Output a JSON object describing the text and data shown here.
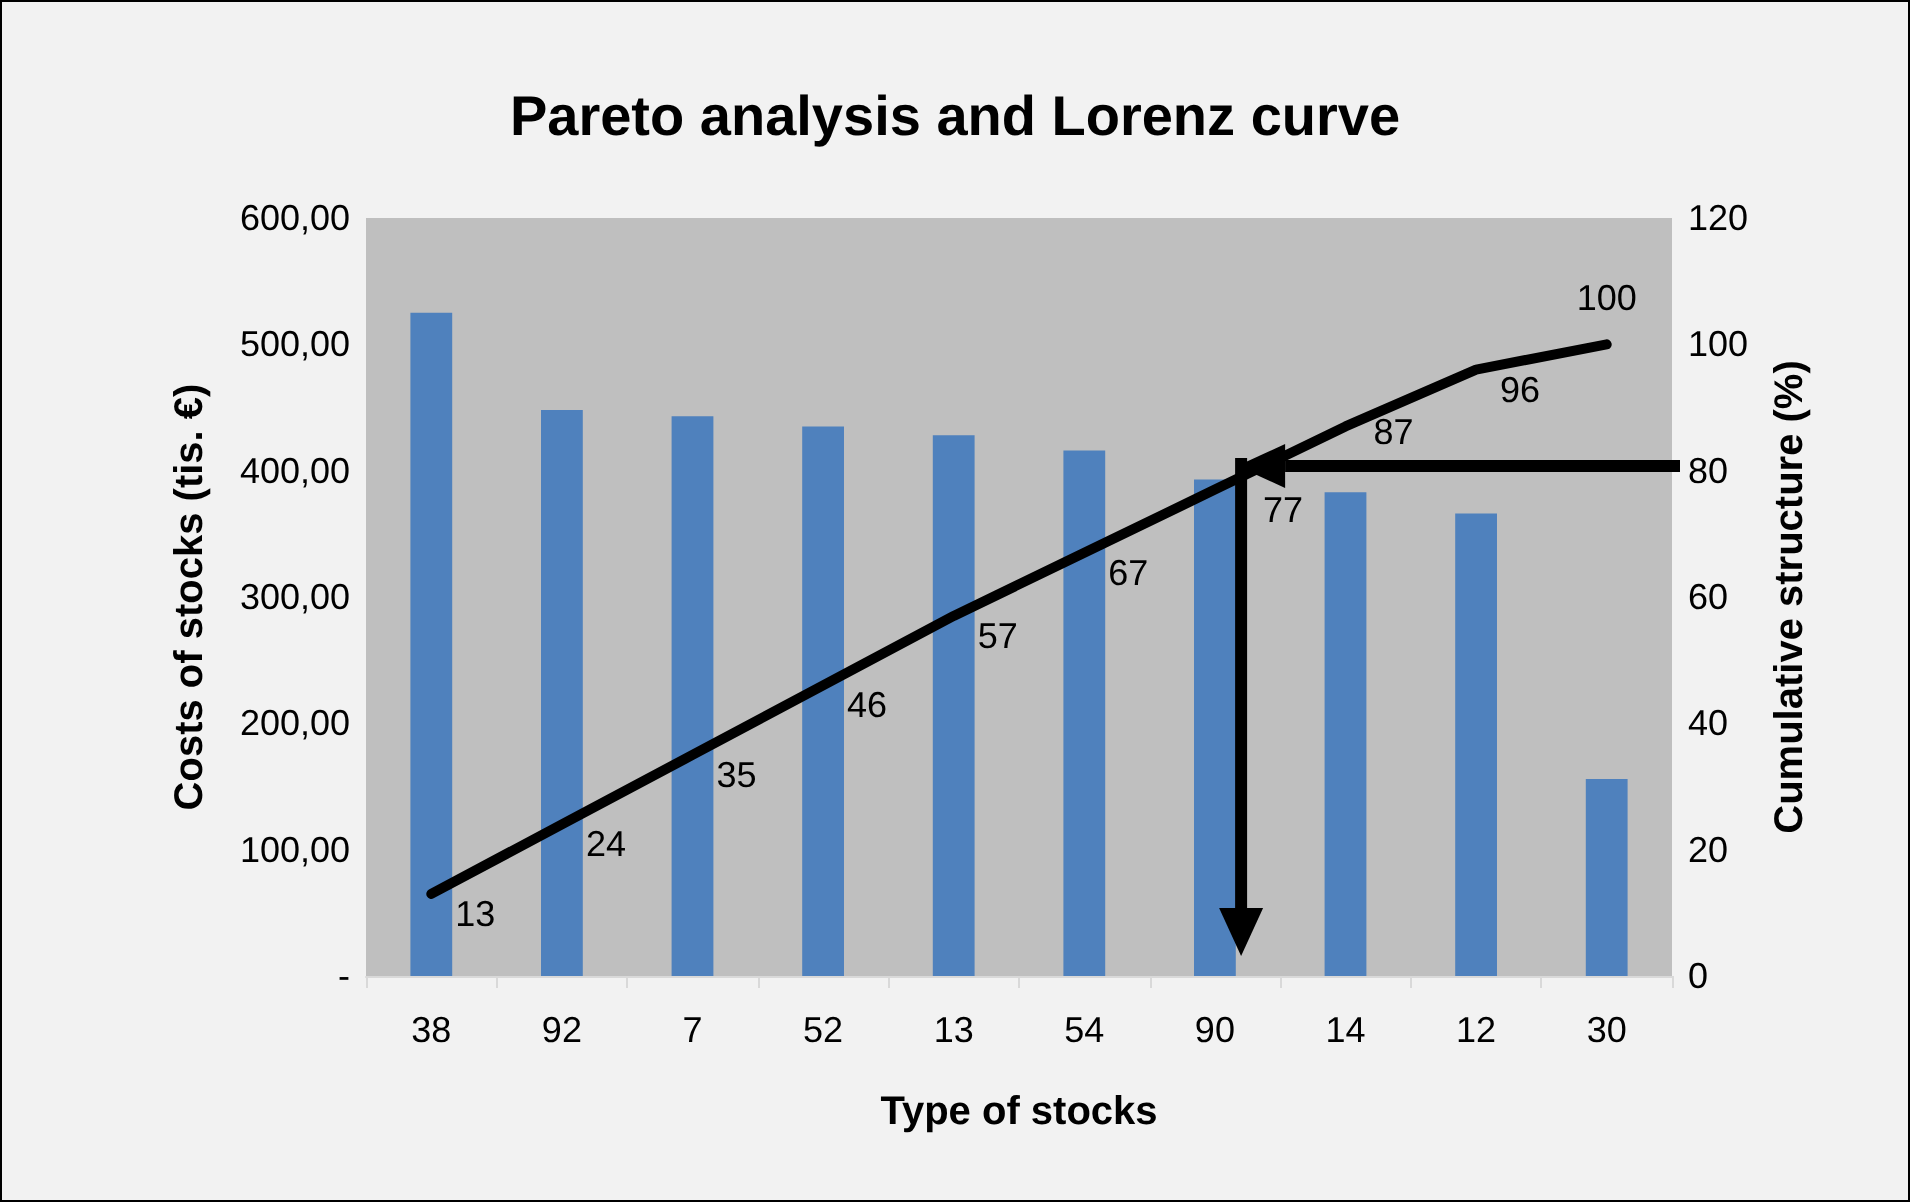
{
  "chart_data": {
    "type": "bar",
    "title": "Pareto analysis and Lorenz curve",
    "xlabel": "Type of stocks",
    "ylabel": "Costs of stocks (tis. €)",
    "y2label": "Cumulative structure (%)",
    "categories": [
      "38",
      "92",
      "7",
      "52",
      "13",
      "54",
      "90",
      "14",
      "12",
      "30"
    ],
    "series": [
      {
        "color": "#4f81bd",
        "values": [
          525,
          448,
          443,
          435,
          428,
          416,
          393,
          383,
          366,
          156
        ]
      },
      {
        "type": "line",
        "axis": "y2",
        "color": "#000000",
        "values": [
          13,
          24,
          35,
          46,
          57,
          67,
          77,
          87,
          96,
          100
        ],
        "data_labels": true
      }
    ],
    "ylim": [
      0,
      600
    ],
    "yticks": [
      {
        "value": 0,
        "label": "-"
      },
      {
        "value": 100,
        "label": "100,00"
      },
      {
        "value": 200,
        "label": "200,00"
      },
      {
        "value": 300,
        "label": "300,00"
      },
      {
        "value": 400,
        "label": "400,00"
      },
      {
        "value": 500,
        "label": "500,00"
      },
      {
        "value": 600,
        "label": "600,00"
      }
    ],
    "y2lim": [
      0,
      120
    ],
    "y2ticks": [
      0,
      20,
      40,
      60,
      80,
      100,
      120
    ],
    "grid": false,
    "marker": "none"
  }
}
